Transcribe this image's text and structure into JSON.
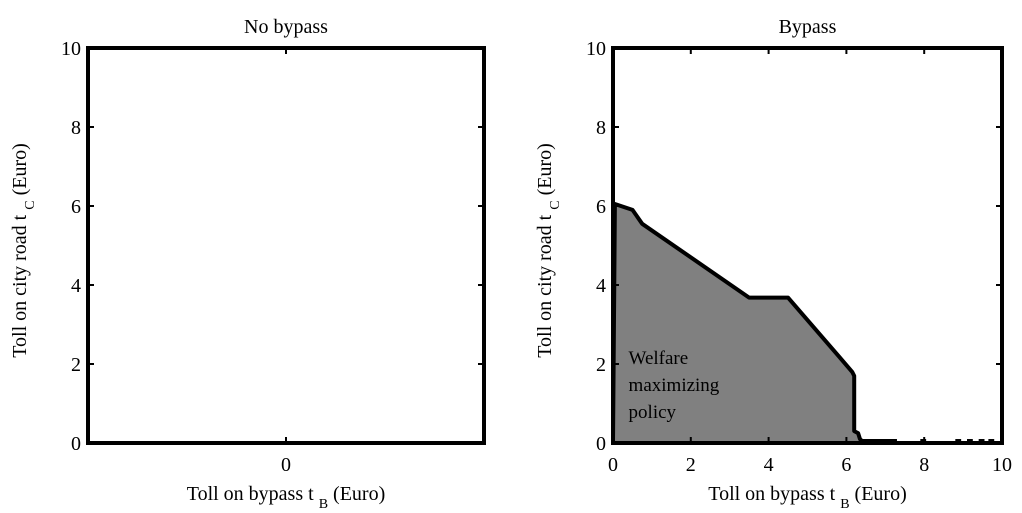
{
  "chart_data": [
    {
      "type": "area",
      "title": "No bypass",
      "xlabel": "Toll on bypass t",
      "xlabel_sub": "B",
      "xlabel_unit": "(Euro)",
      "ylabel": "Toll on city road t",
      "ylabel_sub": "C",
      "ylabel_unit": "(Euro)",
      "xlim": [
        -1,
        1
      ],
      "ylim": [
        0,
        10
      ],
      "xticks": [
        0
      ],
      "yticks": [
        0,
        2,
        4,
        6,
        8,
        10
      ],
      "series": [],
      "annotations": []
    },
    {
      "type": "area",
      "title": "Bypass",
      "xlabel": "Toll on bypass t",
      "xlabel_sub": "B",
      "xlabel_unit": "(Euro)",
      "ylabel": "Toll on city road t",
      "ylabel_sub": "C",
      "ylabel_unit": "(Euro)",
      "xlim": [
        0,
        10
      ],
      "ylim": [
        0,
        10
      ],
      "xticks": [
        0,
        2,
        4,
        6,
        8,
        10
      ],
      "yticks": [
        0,
        2,
        4,
        6,
        8,
        10
      ],
      "series": [
        {
          "fill": "#808080",
          "x": [
            0,
            0.05,
            0.5,
            0.75,
            3.5,
            4.5,
            5.8,
            6.15,
            6.2,
            6.2,
            6.3,
            6.35,
            6.4,
            6.4,
            0
          ],
          "y": [
            0,
            6.05,
            5.9,
            5.55,
            3.68,
            3.68,
            2.2,
            1.8,
            1.7,
            0.3,
            0.25,
            0.1,
            0.05,
            0,
            0
          ]
        }
      ],
      "boundary_segments": [
        {
          "x": [
            6.4,
            7.3
          ],
          "y": [
            0.05,
            0.05
          ]
        },
        {
          "x": [
            7.9,
            8.05
          ],
          "y": [
            0.05,
            0.05
          ]
        },
        {
          "x": [
            8.8,
            8.95
          ],
          "y": [
            0.05,
            0.05
          ]
        },
        {
          "x": [
            9.1,
            9.25
          ],
          "y": [
            0.05,
            0.05
          ]
        },
        {
          "x": [
            9.4,
            9.55
          ],
          "y": [
            0.05,
            0.05
          ]
        },
        {
          "x": [
            9.65,
            9.8
          ],
          "y": [
            0.05,
            0.05
          ]
        }
      ],
      "annotations": [
        {
          "lines": [
            "Welfare",
            "maximizing",
            "policy"
          ],
          "x": 0.4,
          "y": 2.0
        }
      ]
    }
  ]
}
